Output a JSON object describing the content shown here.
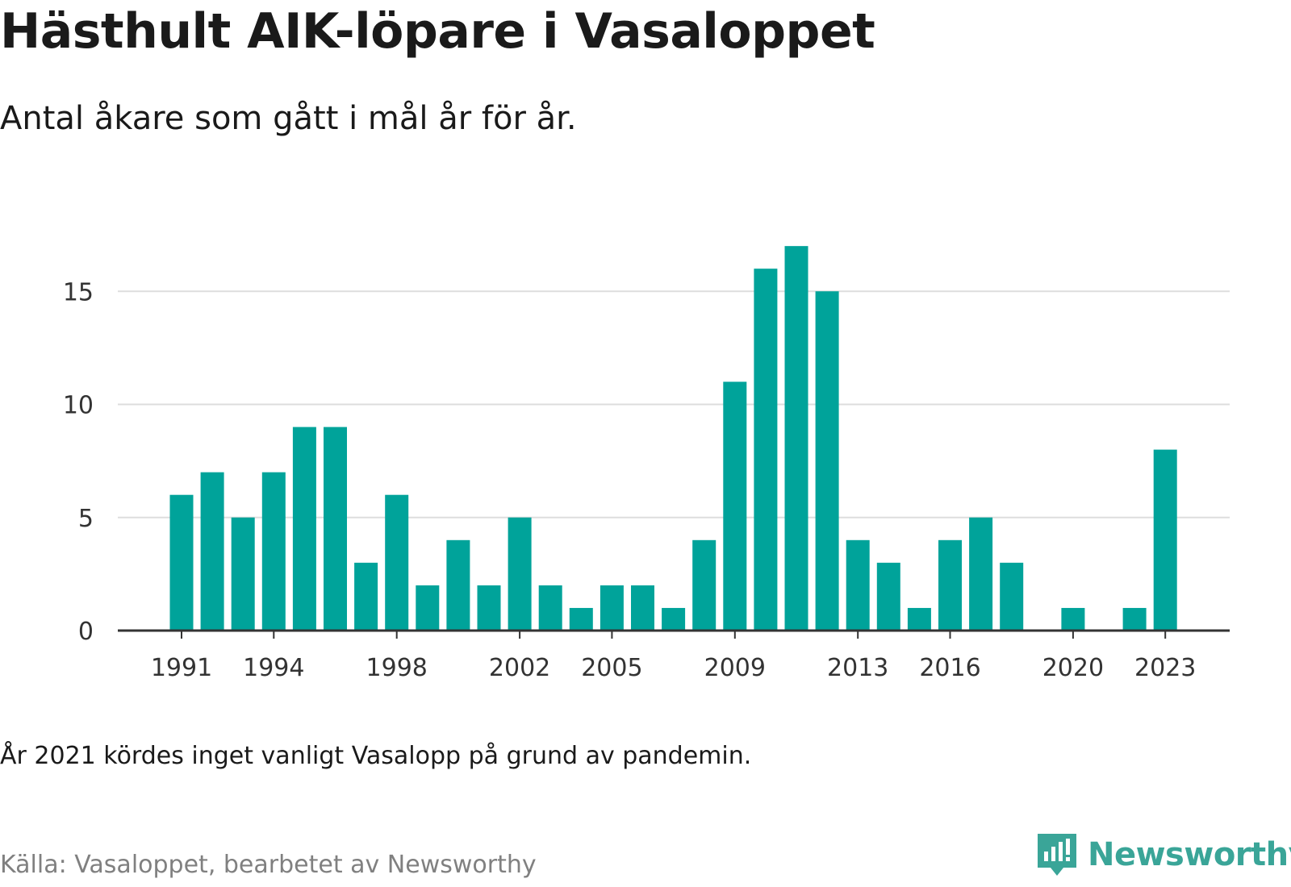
{
  "title": "Hästhult AIK-löpare i Vasaloppet",
  "subtitle": "Antal åkare som gått i mål år för år.",
  "note": "År 2021 kördes inget vanligt Vasalopp på grund av pandemin.",
  "source": "Källa: Vasaloppet, bearbetet av Newsworthy",
  "logo": {
    "text": "Newsworthy",
    "icon": "newsworthy-logo-icon",
    "color": "#3aa598"
  },
  "chart_data": {
    "type": "bar",
    "title": "Hästhult AIK-löpare i Vasaloppet",
    "subtitle": "Antal åkare som gått i mål år för år.",
    "xlabel": "",
    "ylabel": "",
    "categories": [
      1991,
      1992,
      1993,
      1994,
      1995,
      1996,
      1997,
      1998,
      1999,
      2000,
      2001,
      2002,
      2003,
      2004,
      2005,
      2006,
      2007,
      2008,
      2009,
      2010,
      2011,
      2012,
      2013,
      2014,
      2015,
      2016,
      2017,
      2018,
      2019,
      2020,
      2021,
      2022,
      2023
    ],
    "values": [
      6,
      7,
      5,
      7,
      9,
      9,
      3,
      6,
      2,
      4,
      2,
      5,
      2,
      1,
      2,
      2,
      1,
      4,
      11,
      16,
      17,
      15,
      4,
      3,
      1,
      4,
      5,
      3,
      0,
      1,
      0,
      1,
      8
    ],
    "x_ticks": [
      "1991",
      "1994",
      "1998",
      "2002",
      "2005",
      "2009",
      "2013",
      "2016",
      "2020",
      "2023"
    ],
    "y_ticks": [
      0,
      5,
      10,
      15
    ],
    "ylim": [
      0,
      17
    ],
    "grid": "horizontal",
    "bar_color": "#00a39a",
    "grid_color": "#dddddd",
    "axis_color": "#333333"
  }
}
